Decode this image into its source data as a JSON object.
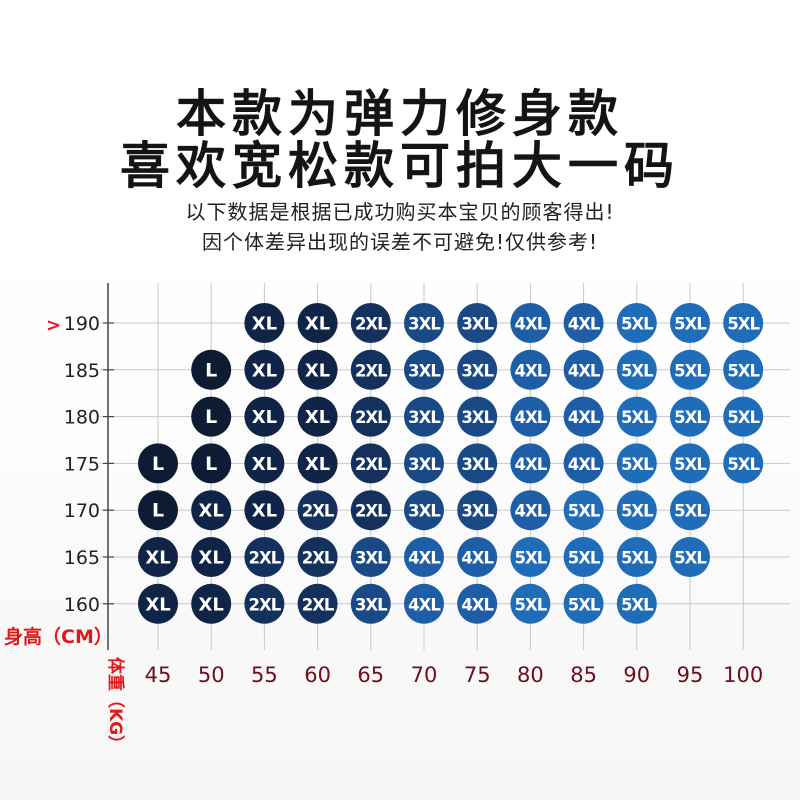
{
  "header": {
    "line1": "本款为弹力修身款",
    "line2": "喜欢宽松款可拍大一码",
    "note1": "以下数据是根据已成功购买本宝贝的顾客得出!",
    "note2": "因个体差异出现的误差不可避免!仅供参考!"
  },
  "chart_data": {
    "type": "table",
    "ylabel": "身高（CM）",
    "xlabel": "体重（KG）",
    "y_marker": ">",
    "y_values": [
      190,
      185,
      180,
      175,
      170,
      165,
      160
    ],
    "x_values": [
      45,
      50,
      55,
      60,
      65,
      70,
      75,
      80,
      85,
      90,
      95,
      100
    ],
    "grid": true,
    "size_colors": {
      "L": "#0d1b33",
      "XL": "#0f2447",
      "2XL": "#14305c",
      "3XL": "#1a4a86",
      "4XL": "#1d5ea6",
      "5XL": "#1f6db8"
    },
    "cells": [
      {
        "height": 190,
        "weight": 55,
        "size": "XL"
      },
      {
        "height": 190,
        "weight": 60,
        "size": "XL"
      },
      {
        "height": 190,
        "weight": 65,
        "size": "2XL"
      },
      {
        "height": 190,
        "weight": 70,
        "size": "3XL"
      },
      {
        "height": 190,
        "weight": 75,
        "size": "3XL"
      },
      {
        "height": 190,
        "weight": 80,
        "size": "4XL"
      },
      {
        "height": 190,
        "weight": 85,
        "size": "4XL"
      },
      {
        "height": 190,
        "weight": 90,
        "size": "5XL"
      },
      {
        "height": 190,
        "weight": 95,
        "size": "5XL"
      },
      {
        "height": 190,
        "weight": 100,
        "size": "5XL"
      },
      {
        "height": 185,
        "weight": 50,
        "size": "L"
      },
      {
        "height": 185,
        "weight": 55,
        "size": "XL"
      },
      {
        "height": 185,
        "weight": 60,
        "size": "XL"
      },
      {
        "height": 185,
        "weight": 65,
        "size": "2XL"
      },
      {
        "height": 185,
        "weight": 70,
        "size": "3XL"
      },
      {
        "height": 185,
        "weight": 75,
        "size": "3XL"
      },
      {
        "height": 185,
        "weight": 80,
        "size": "4XL"
      },
      {
        "height": 185,
        "weight": 85,
        "size": "4XL"
      },
      {
        "height": 185,
        "weight": 90,
        "size": "5XL"
      },
      {
        "height": 185,
        "weight": 95,
        "size": "5XL"
      },
      {
        "height": 185,
        "weight": 100,
        "size": "5XL"
      },
      {
        "height": 180,
        "weight": 50,
        "size": "L"
      },
      {
        "height": 180,
        "weight": 55,
        "size": "XL"
      },
      {
        "height": 180,
        "weight": 60,
        "size": "XL"
      },
      {
        "height": 180,
        "weight": 65,
        "size": "2XL"
      },
      {
        "height": 180,
        "weight": 70,
        "size": "3XL"
      },
      {
        "height": 180,
        "weight": 75,
        "size": "3XL"
      },
      {
        "height": 180,
        "weight": 80,
        "size": "4XL"
      },
      {
        "height": 180,
        "weight": 85,
        "size": "4XL"
      },
      {
        "height": 180,
        "weight": 90,
        "size": "5XL"
      },
      {
        "height": 180,
        "weight": 95,
        "size": "5XL"
      },
      {
        "height": 180,
        "weight": 100,
        "size": "5XL"
      },
      {
        "height": 175,
        "weight": 45,
        "size": "L"
      },
      {
        "height": 175,
        "weight": 50,
        "size": "L"
      },
      {
        "height": 175,
        "weight": 55,
        "size": "XL"
      },
      {
        "height": 175,
        "weight": 60,
        "size": "XL"
      },
      {
        "height": 175,
        "weight": 65,
        "size": "2XL"
      },
      {
        "height": 175,
        "weight": 70,
        "size": "3XL"
      },
      {
        "height": 175,
        "weight": 75,
        "size": "3XL"
      },
      {
        "height": 175,
        "weight": 80,
        "size": "4XL"
      },
      {
        "height": 175,
        "weight": 85,
        "size": "4XL"
      },
      {
        "height": 175,
        "weight": 90,
        "size": "5XL"
      },
      {
        "height": 175,
        "weight": 95,
        "size": "5XL"
      },
      {
        "height": 175,
        "weight": 100,
        "size": "5XL"
      },
      {
        "height": 170,
        "weight": 45,
        "size": "L"
      },
      {
        "height": 170,
        "weight": 50,
        "size": "XL"
      },
      {
        "height": 170,
        "weight": 55,
        "size": "XL"
      },
      {
        "height": 170,
        "weight": 60,
        "size": "2XL"
      },
      {
        "height": 170,
        "weight": 65,
        "size": "2XL"
      },
      {
        "height": 170,
        "weight": 70,
        "size": "3XL"
      },
      {
        "height": 170,
        "weight": 75,
        "size": "3XL"
      },
      {
        "height": 170,
        "weight": 80,
        "size": "4XL"
      },
      {
        "height": 170,
        "weight": 85,
        "size": "5XL"
      },
      {
        "height": 170,
        "weight": 90,
        "size": "5XL"
      },
      {
        "height": 170,
        "weight": 95,
        "size": "5XL"
      },
      {
        "height": 165,
        "weight": 45,
        "size": "XL"
      },
      {
        "height": 165,
        "weight": 50,
        "size": "XL"
      },
      {
        "height": 165,
        "weight": 55,
        "size": "2XL"
      },
      {
        "height": 165,
        "weight": 60,
        "size": "2XL"
      },
      {
        "height": 165,
        "weight": 65,
        "size": "3XL"
      },
      {
        "height": 165,
        "weight": 70,
        "size": "4XL"
      },
      {
        "height": 165,
        "weight": 75,
        "size": "4XL"
      },
      {
        "height": 165,
        "weight": 80,
        "size": "5XL"
      },
      {
        "height": 165,
        "weight": 85,
        "size": "5XL"
      },
      {
        "height": 165,
        "weight": 90,
        "size": "5XL"
      },
      {
        "height": 165,
        "weight": 95,
        "size": "5XL"
      },
      {
        "height": 160,
        "weight": 45,
        "size": "XL"
      },
      {
        "height": 160,
        "weight": 50,
        "size": "XL"
      },
      {
        "height": 160,
        "weight": 55,
        "size": "2XL"
      },
      {
        "height": 160,
        "weight": 60,
        "size": "2XL"
      },
      {
        "height": 160,
        "weight": 65,
        "size": "3XL"
      },
      {
        "height": 160,
        "weight": 70,
        "size": "4XL"
      },
      {
        "height": 160,
        "weight": 75,
        "size": "4XL"
      },
      {
        "height": 160,
        "weight": 80,
        "size": "5XL"
      },
      {
        "height": 160,
        "weight": 85,
        "size": "5XL"
      },
      {
        "height": 160,
        "weight": 90,
        "size": "5XL"
      }
    ]
  }
}
